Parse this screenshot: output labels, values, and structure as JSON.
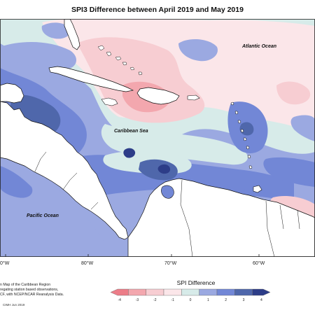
{
  "title": "SPI3 Difference between April 2019 and May 2019",
  "labels": {
    "atlantic": "Atlantic Ocean",
    "caribbean": "Caribbean Sea",
    "pacific": "Pacific Ocean"
  },
  "longitude_ticks": [
    "0°W",
    "80°W",
    "70°W",
    "60°W"
  ],
  "description_lines": [
    "n Map of the Caribbean Region",
    "regating station based observations,",
    "CF, with NCEP/NCAR Reanalysis Data."
  ],
  "credit": "CIMH Jun 2019",
  "legend": {
    "title": "SPI Difference",
    "ticks": [
      "-4",
      "-3",
      "-2",
      "-1",
      "0",
      "1",
      "2",
      "3",
      "4"
    ],
    "colors": [
      "#ec7d88",
      "#f3a7ae",
      "#f7cdd2",
      "#fbe6e9",
      "#d7ebe9",
      "#9ba9e1",
      "#7287d6",
      "#4f67ab",
      "#2d3d88"
    ]
  },
  "colors": {
    "pink_light": "#fbe6e9",
    "pink_mid": "#f7cdd2",
    "pink_strong": "#f3a7ae",
    "pale": "#d7ebe9",
    "blue_light": "#9ba9e1",
    "blue_mid": "#7287d6",
    "blue_dark": "#4f67ab",
    "navy": "#2d3d88",
    "land": "#ffffff"
  }
}
